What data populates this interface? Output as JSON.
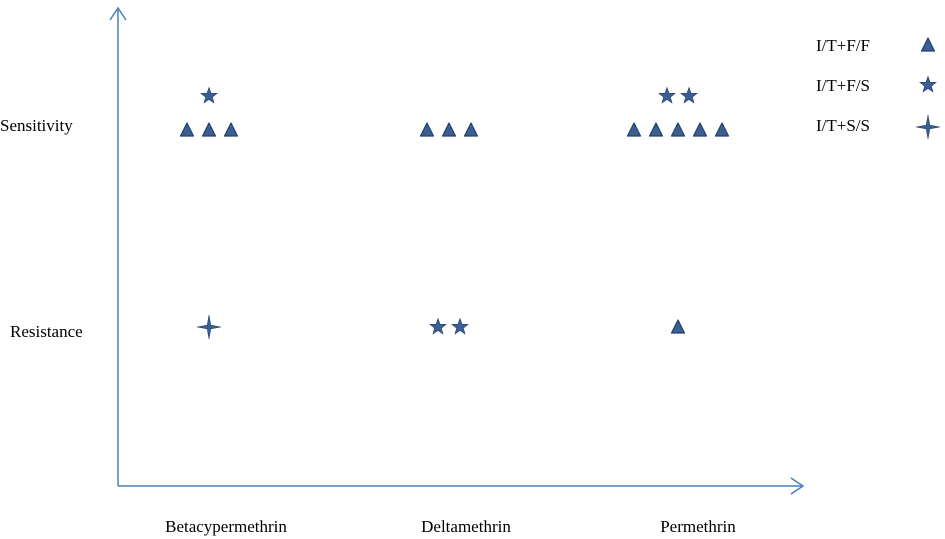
{
  "chart_data": {
    "type": "scatter",
    "categories": [
      "Betacypermethrin",
      "Deltamethrin",
      "Permethrin"
    ],
    "y_categories": [
      "Sensitivity",
      "Resistance"
    ],
    "series": [
      {
        "name": "I/T+F/F",
        "marker": "triangle",
        "counts": {
          "Sensitivity": [
            3,
            3,
            5
          ],
          "Resistance": [
            0,
            0,
            1
          ]
        }
      },
      {
        "name": "I/T+F/S",
        "marker": "star-five",
        "counts": {
          "Sensitivity": [
            1,
            0,
            2
          ],
          "Resistance": [
            0,
            2,
            0
          ]
        }
      },
      {
        "name": "I/T+S/S",
        "marker": "star-four",
        "counts": {
          "Sensitivity": [
            0,
            0,
            0
          ],
          "Resistance": [
            1,
            0,
            0
          ]
        }
      }
    ],
    "legend_position": "top-right",
    "grid": false
  },
  "colors": {
    "axis": "#4a7ebb",
    "marker_fill": "#3b5e93",
    "marker_stroke": "#24406e"
  }
}
